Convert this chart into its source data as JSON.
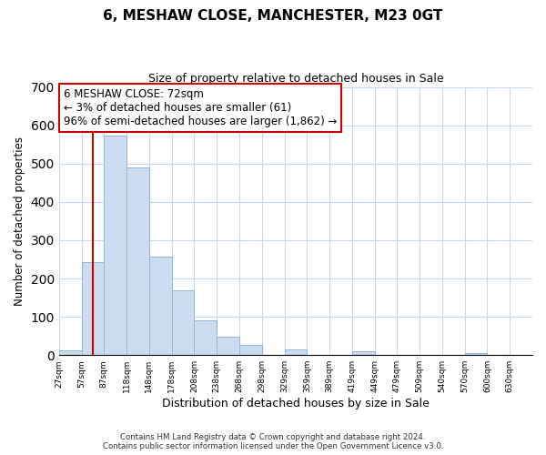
{
  "title": "6, MESHAW CLOSE, MANCHESTER, M23 0GT",
  "subtitle": "Size of property relative to detached houses in Sale",
  "xlabel": "Distribution of detached houses by size in Sale",
  "ylabel": "Number of detached properties",
  "bar_labels": [
    "27sqm",
    "57sqm",
    "87sqm",
    "118sqm",
    "148sqm",
    "178sqm",
    "208sqm",
    "238sqm",
    "268sqm",
    "298sqm",
    "329sqm",
    "359sqm",
    "389sqm",
    "419sqm",
    "449sqm",
    "479sqm",
    "509sqm",
    "540sqm",
    "570sqm",
    "600sqm",
    "630sqm"
  ],
  "bar_values": [
    12,
    243,
    573,
    491,
    258,
    168,
    90,
    47,
    27,
    0,
    14,
    0,
    0,
    9,
    0,
    0,
    0,
    0,
    5,
    0,
    0
  ],
  "bar_color": "#ccdcf0",
  "bar_edge_color": "#90b4d8",
  "ylim": [
    0,
    700
  ],
  "yticks": [
    0,
    100,
    200,
    300,
    400,
    500,
    600,
    700
  ],
  "property_line_color": "#cc0000",
  "annotation_text": "6 MESHAW CLOSE: 72sqm\n← 3% of detached houses are smaller (61)\n96% of semi-detached houses are larger (1,862) →",
  "annotation_box_color": "#ffffff",
  "annotation_box_edge_color": "#cc0000",
  "footer_line1": "Contains HM Land Registry data © Crown copyright and database right 2024.",
  "footer_line2": "Contains public sector information licensed under the Open Government Licence v3.0.",
  "background_color": "#ffffff",
  "grid_color": "#c8d8e8"
}
